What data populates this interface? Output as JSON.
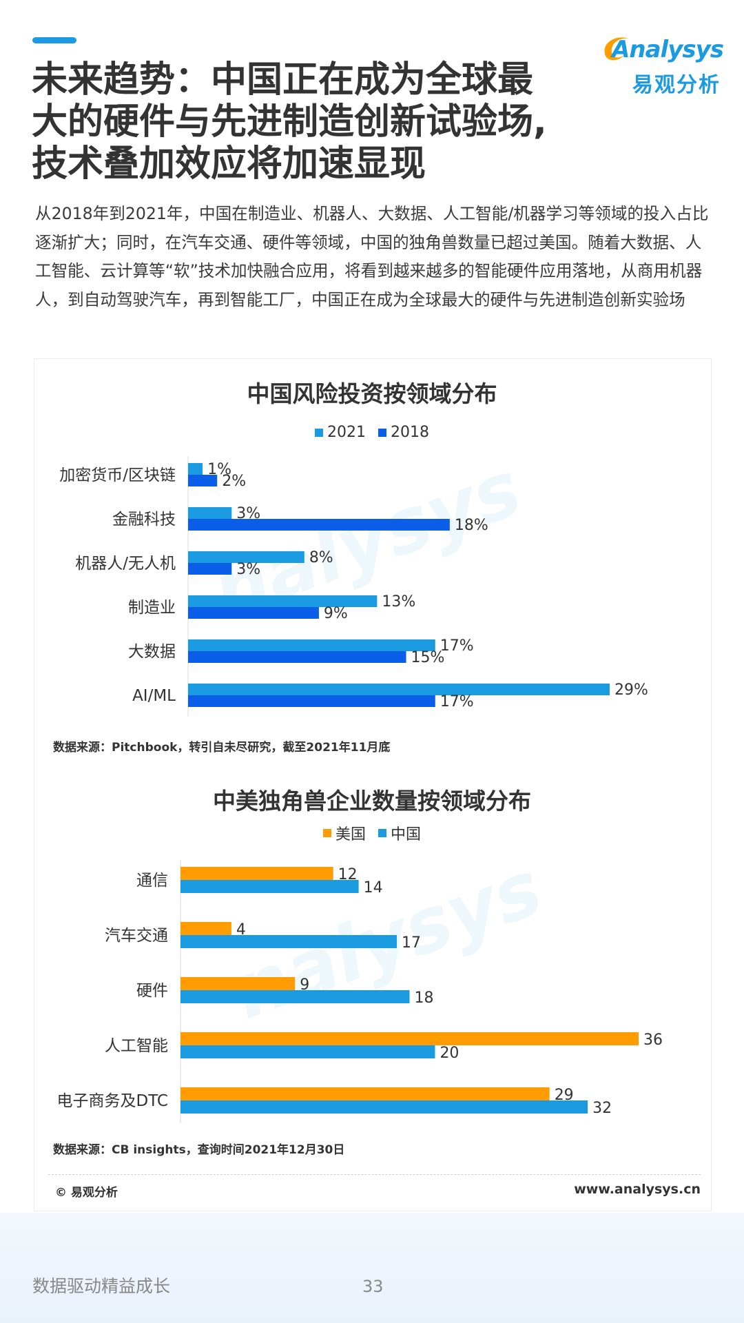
{
  "header": {
    "title_lines": [
      "未来趋势：中国正在成为全球最",
      "大的硬件与先进制造创新试验场,",
      "技术叠加效应将加速显现"
    ],
    "logo_word": "Analysys",
    "logo_cn": "易观分析"
  },
  "intro": "从2018年到2021年，中国在制造业、机器人、大数据、人工智能/机器学习等领域的投入占比逐渐扩大；同时，在汽车交通、硬件等领域，中国的独角兽数量已超过美国。随着大数据、人工智能、云计算等“软”技术加快融合应用，将看到越来越多的智能硬件应用落地，从商用机器人，到自动驾驶汽车，再到智能工厂，中国正在成为全球最大的硬件与先进制造创新实验场",
  "chart_data": [
    {
      "type": "bar",
      "orientation": "horizontal",
      "title": "中国风险投资按领域分布",
      "categories": [
        "加密货币/区块链",
        "金融科技",
        "机器人/无人机",
        "制造业",
        "大数据",
        "AI/ML"
      ],
      "series": [
        {
          "name": "2021",
          "color": "#1a9ae0",
          "values": [
            1,
            3,
            8,
            13,
            17,
            29
          ],
          "labels": [
            "1%",
            "3%",
            "8%",
            "13%",
            "17%",
            "29%"
          ]
        },
        {
          "name": "2018",
          "color": "#0a5ee8",
          "values": [
            2,
            18,
            3,
            9,
            15,
            17
          ],
          "labels": [
            "2%",
            "18%",
            "3%",
            "9%",
            "15%",
            "17%"
          ]
        }
      ],
      "xlim": [
        0,
        29
      ],
      "legend_position": "top",
      "grid": false,
      "source": "数据来源：Pitchbook，转引自未尽研究，截至2021年11月底"
    },
    {
      "type": "bar",
      "orientation": "horizontal",
      "title": "中美独角兽企业数量按领域分布",
      "categories": [
        "通信",
        "汽车交通",
        "硬件",
        "人工智能",
        "电子商务及DTC"
      ],
      "series": [
        {
          "name": "美国",
          "color": "#ff9c00",
          "values": [
            12,
            4,
            9,
            36,
            29
          ],
          "labels": [
            "12",
            "4",
            "9",
            "36",
            "29"
          ]
        },
        {
          "name": "中国",
          "color": "#1a9ae0",
          "values": [
            14,
            17,
            18,
            20,
            32
          ],
          "labels": [
            "14",
            "17",
            "18",
            "20",
            "32"
          ]
        }
      ],
      "xlim": [
        0,
        36
      ],
      "legend_position": "top",
      "grid": false,
      "source": "数据来源：CB insights，查询时间2021年12月30日"
    }
  ],
  "footer": {
    "copyright": "© 易观分析",
    "website": "www.analysys.cn",
    "tagline": "数据驱动精益成长",
    "page_number": "33"
  }
}
